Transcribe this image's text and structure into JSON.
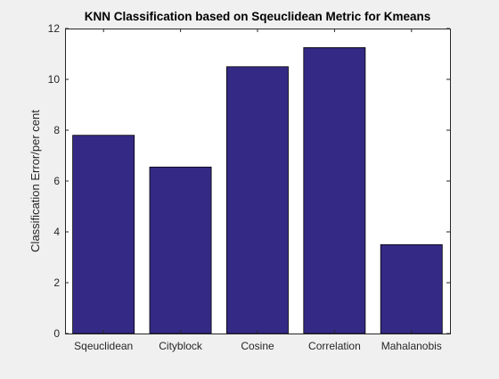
{
  "chart_data": {
    "type": "bar",
    "title": "KNN Classification based on Sqeuclidean Metric for Kmeans",
    "xlabel": "",
    "ylabel": "Classification Error/per cent",
    "categories": [
      "Sqeuclidean",
      "Cityblock",
      "Cosine",
      "Correlation",
      "Mahalanobis"
    ],
    "values": [
      7.8,
      6.55,
      10.5,
      11.25,
      3.5
    ],
    "ylim": [
      0,
      12
    ],
    "yticks": [
      0,
      2,
      4,
      6,
      8,
      10,
      12
    ],
    "bar_color": "#342a85",
    "bar_edge_color": "#000000",
    "background_color": "#f0f0f0",
    "axes_color": "#ffffff",
    "grid": false,
    "legend": "none"
  }
}
